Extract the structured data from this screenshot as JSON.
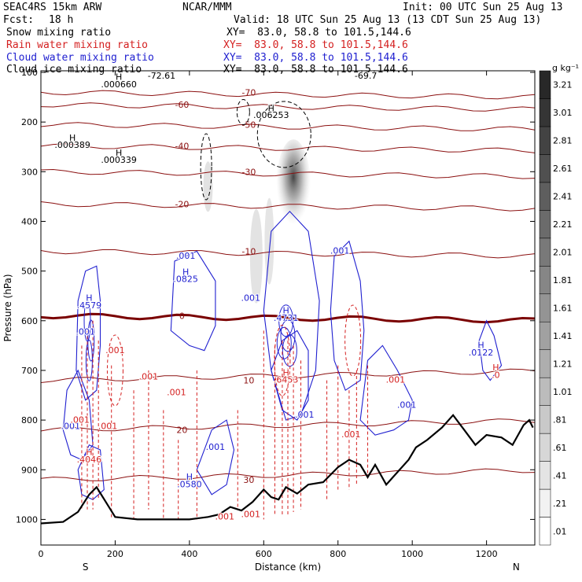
{
  "header": {
    "model": "SEAC4RS 15km ARW",
    "org": "NCAR/MMM",
    "init": "Init: 00 UTC Sun 25 Aug 13",
    "fcst_label": "Fcst:",
    "fcst_value": "18 h",
    "valid": "Valid: 18 UTC Sun 25 Aug 13 (13 CDT Sun 25 Aug 13)",
    "fields": [
      {
        "name": "Snow mixing ratio",
        "xy": "XY=  83.0, 58.8 to 101.5,144.6",
        "color": "#000000"
      },
      {
        "name": "Rain water mixing ratio",
        "xy": "XY=  83.0, 58.8 to 101.5,144.6",
        "color": "#d42020"
      },
      {
        "name": "Cloud water mixing ratio",
        "xy": "XY=  83.0, 58.8 to 101.5,144.6",
        "color": "#2020d0"
      },
      {
        "name": "Cloud ice mixing ratio",
        "xy": "XY=  83.0, 58.8 to 101.5,144.6",
        "color": "#000000"
      }
    ]
  },
  "colorbar": {
    "unit": "g kg⁻¹",
    "levels": [
      ".01",
      ".21",
      ".41",
      ".61",
      ".81",
      "1.01",
      "1.21",
      "1.41",
      "1.61",
      "1.81",
      "2.01",
      "2.21",
      "2.41",
      "2.61",
      "2.81",
      "3.01",
      "3.21"
    ]
  },
  "chart_data": {
    "type": "cross-section",
    "xlabel": "Distance (km)",
    "ylabel": "Pressure (hPa)",
    "xlim": [
      0,
      1330
    ],
    "ylim": [
      1050,
      100
    ],
    "x_ticks": [
      0,
      200,
      400,
      600,
      800,
      1000,
      1200
    ],
    "y_ticks": [
      100,
      200,
      300,
      400,
      500,
      600,
      700,
      800,
      900,
      1000
    ],
    "end_labels": {
      "left": "S",
      "right": "N"
    },
    "colors": {
      "temperature": "#8b1010",
      "zero_isotherm": "#7a0000",
      "rain": "#d42020",
      "cloud_water": "#2020d0",
      "terrain": "#000000"
    },
    "temperature_isotherms": [
      {
        "label": "-70",
        "pressure": 140
      },
      {
        "label": "-60",
        "pressure": 165
      },
      {
        "label": "-50",
        "pressure": 205
      },
      {
        "label": "-40",
        "pressure": 248
      },
      {
        "label": "-30",
        "pressure": 300
      },
      {
        "label": "-20",
        "pressure": 365
      },
      {
        "label": "-10",
        "pressure": 460
      },
      {
        "label": "0",
        "pressure": 590
      },
      {
        "label": "10",
        "pressure": 720
      },
      {
        "label": "20",
        "pressure": 820
      },
      {
        "label": "30",
        "pressure": 920
      }
    ],
    "terrain_profile": [
      [
        0,
        1008
      ],
      [
        60,
        1005
      ],
      [
        100,
        985
      ],
      [
        130,
        950
      ],
      [
        150,
        935
      ],
      [
        175,
        965
      ],
      [
        200,
        995
      ],
      [
        260,
        1000
      ],
      [
        400,
        1000
      ],
      [
        450,
        995
      ],
      [
        480,
        990
      ],
      [
        510,
        975
      ],
      [
        540,
        982
      ],
      [
        570,
        965
      ],
      [
        600,
        940
      ],
      [
        620,
        955
      ],
      [
        640,
        960
      ],
      [
        660,
        935
      ],
      [
        690,
        948
      ],
      [
        720,
        930
      ],
      [
        760,
        925
      ],
      [
        800,
        895
      ],
      [
        830,
        880
      ],
      [
        860,
        890
      ],
      [
        880,
        915
      ],
      [
        900,
        890
      ],
      [
        930,
        930
      ],
      [
        960,
        905
      ],
      [
        990,
        880
      ],
      [
        1010,
        855
      ],
      [
        1040,
        840
      ],
      [
        1080,
        815
      ],
      [
        1110,
        790
      ],
      [
        1140,
        820
      ],
      [
        1170,
        850
      ],
      [
        1200,
        830
      ],
      [
        1240,
        835
      ],
      [
        1270,
        850
      ],
      [
        1300,
        810
      ],
      [
        1315,
        800
      ],
      [
        1325,
        815
      ]
    ],
    "labels_snow": [
      {
        "text": "H",
        "x": 210,
        "p": 115
      },
      {
        "text": ".000660",
        "x": 210,
        "p": 130
      }
    ],
    "labels_ice": [
      {
        "text": "H",
        "x": 85,
        "p": 238
      },
      {
        "text": ".000389",
        "x": 85,
        "p": 252
      },
      {
        "text": "H",
        "x": 210,
        "p": 268
      },
      {
        "text": ".000339",
        "x": 210,
        "p": 282
      },
      {
        "text": "H",
        "x": 620,
        "p": 178
      },
      {
        "text": ".006253",
        "x": 620,
        "p": 192
      },
      {
        "text": "-72.61",
        "x": 325,
        "p": 113
      },
      {
        "text": "-69.7",
        "x": 875,
        "p": 113
      }
    ],
    "labels_cloud": [
      {
        "text": ".001",
        "x": 390,
        "p": 475
      },
      {
        "text": "H",
        "x": 390,
        "p": 508
      },
      {
        "text": ".0825",
        "x": 390,
        "p": 522
      },
      {
        "text": ".001",
        "x": 565,
        "p": 560
      },
      {
        "text": "H",
        "x": 130,
        "p": 560
      },
      {
        "text": ".4579",
        "x": 130,
        "p": 575
      },
      {
        "text": ".001",
        "x": 120,
        "p": 628
      },
      {
        "text": ".001",
        "x": 80,
        "p": 818
      },
      {
        "text": "H",
        "x": 660,
        "p": 585
      },
      {
        "text": ".4731",
        "x": 660,
        "p": 600
      },
      {
        "text": ".001",
        "x": 805,
        "p": 465
      },
      {
        "text": ".001",
        "x": 710,
        "p": 795
      },
      {
        "text": ".001",
        "x": 985,
        "p": 775
      },
      {
        "text": ".001",
        "x": 470,
        "p": 860
      },
      {
        "text": "H",
        "x": 400,
        "p": 920
      },
      {
        "text": ".0580",
        "x": 400,
        "p": 935
      },
      {
        "text": "H",
        "x": 1185,
        "p": 655
      },
      {
        "text": ".0122",
        "x": 1185,
        "p": 670
      }
    ],
    "labels_rain": [
      {
        "text": ".001",
        "x": 200,
        "p": 665
      },
      {
        "text": ".001",
        "x": 290,
        "p": 718
      },
      {
        "text": ".001",
        "x": 365,
        "p": 750
      },
      {
        "text": ".001",
        "x": 105,
        "p": 805
      },
      {
        "text": ".001",
        "x": 180,
        "p": 818
      },
      {
        "text": "H",
        "x": 130,
        "p": 870
      },
      {
        "text": ".4046",
        "x": 130,
        "p": 885
      },
      {
        "text": "H",
        "x": 660,
        "p": 710
      },
      {
        "text": ".6453",
        "x": 660,
        "p": 725
      },
      {
        "text": ".001",
        "x": 835,
        "p": 835
      },
      {
        "text": ".001",
        "x": 955,
        "p": 725
      },
      {
        "text": ".001",
        "x": 495,
        "p": 1000
      },
      {
        "text": ".001",
        "x": 565,
        "p": 995
      },
      {
        "text": "H",
        "x": 1225,
        "p": 700
      },
      {
        "text": ".0",
        "x": 1225,
        "p": 715
      }
    ]
  }
}
